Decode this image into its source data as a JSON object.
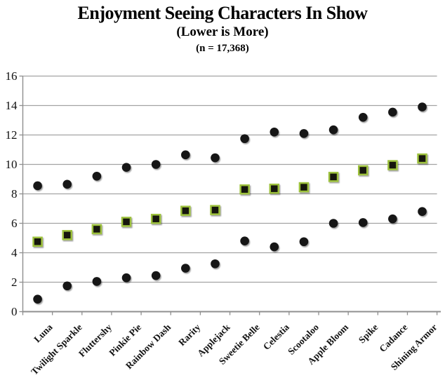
{
  "header": {
    "title": "Enjoyment Seeing Characters In Show",
    "subtitle": "(Lower is More)",
    "sample_note": "(n = 17,368)"
  },
  "chart_data": {
    "type": "scatter",
    "variant": "high-mid-low range plot: vertical line per category, round dots at range ends, green-bordered square at midpoint",
    "title": "Enjoyment Seeing Characters In Show",
    "subtitle": "(Lower is More)",
    "sample_note": "(n = 17,368)",
    "categories": [
      "Luna",
      "Twilight Sparkle",
      "Fluttershy",
      "Pinkie Pie",
      "Rainbow Dash",
      "Rarity",
      "Applejack",
      "Sweetie Belle",
      "Celestia",
      "Scootaloo",
      "Apple Bloom",
      "Spike",
      "Cadance",
      "Shining Armor"
    ],
    "series": [
      {
        "name": "upper",
        "marker": "black-dot",
        "values": [
          8.55,
          8.65,
          9.2,
          9.8,
          10.0,
          10.65,
          10.45,
          11.75,
          12.2,
          12.1,
          12.35,
          13.2,
          13.55,
          13.9
        ]
      },
      {
        "name": "middle",
        "marker": "green-bordered-square",
        "values": [
          4.75,
          5.2,
          5.6,
          6.1,
          6.3,
          6.85,
          6.9,
          8.3,
          8.35,
          8.45,
          9.15,
          9.6,
          9.95,
          10.4
        ]
      },
      {
        "name": "lower",
        "marker": "black-dot",
        "values": [
          0.85,
          1.75,
          2.05,
          2.3,
          2.45,
          2.95,
          3.25,
          4.8,
          4.4,
          4.75,
          6.0,
          6.05,
          6.3,
          6.8
        ]
      }
    ],
    "ylim": [
      0,
      16
    ],
    "yticks": [
      0,
      2,
      4,
      6,
      8,
      10,
      12,
      14,
      16
    ],
    "xlabel": "",
    "ylabel": "",
    "grid": "horizontal",
    "legend": "none",
    "x_tick_label_rotation_deg": 45,
    "colors": {
      "range_line": "#121212",
      "dot_fill": "#121212",
      "square_fill": "#17190d",
      "square_border": "#9dc13c",
      "gridline": "#a3a3a3",
      "axis_line": "#8f8f8f",
      "text": "#111111",
      "background": "#ffffff"
    }
  }
}
